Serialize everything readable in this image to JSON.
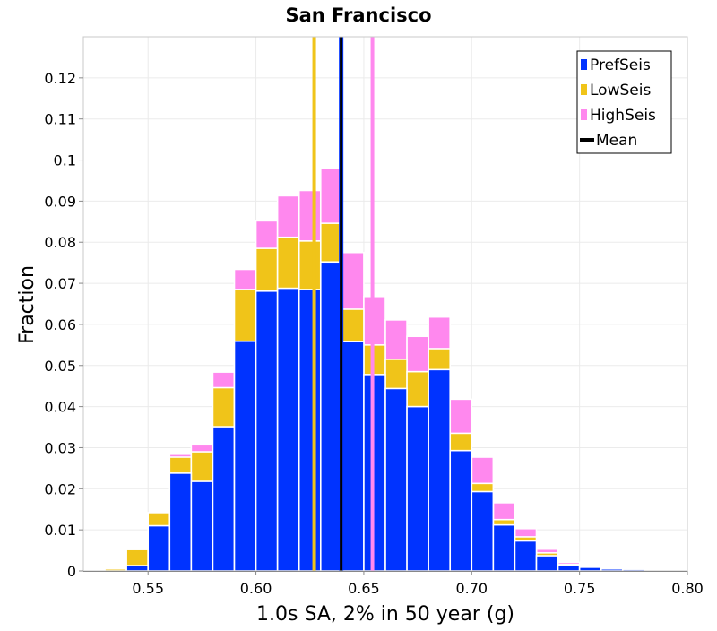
{
  "chart_data": {
    "type": "bar",
    "title": "San Francisco",
    "xlabel": "1.0s SA, 2% in 50 year (g)",
    "ylabel": "Fraction",
    "xlim": [
      0.52,
      0.8
    ],
    "ylim": [
      0,
      0.13
    ],
    "grid": true,
    "bin_width": 0.01,
    "bin_centers": [
      0.525,
      0.535,
      0.545,
      0.555,
      0.565,
      0.575,
      0.585,
      0.595,
      0.605,
      0.615,
      0.625,
      0.635,
      0.645,
      0.655,
      0.665,
      0.675,
      0.685,
      0.695,
      0.705,
      0.715,
      0.725,
      0.735,
      0.745,
      0.755,
      0.765,
      0.775,
      0.785,
      0.795
    ],
    "x_ticks": [
      "0.55",
      "0.60",
      "0.65",
      "0.70",
      "0.75",
      "0.80"
    ],
    "x_tick_values": [
      0.55,
      0.6,
      0.65,
      0.7,
      0.75,
      0.8
    ],
    "y_ticks": [
      "0",
      "0.01",
      "0.02",
      "0.03",
      "0.04",
      "0.05",
      "0.06",
      "0.07",
      "0.08",
      "0.09",
      "0.1",
      "0.11",
      "0.12"
    ],
    "y_tick_values": [
      0,
      0.01,
      0.02,
      0.03,
      0.04,
      0.05,
      0.06,
      0.07,
      0.08,
      0.09,
      0.1,
      0.11,
      0.12
    ],
    "series": [
      {
        "name": "PrefSeis",
        "color": "#0033ff",
        "values": [
          0.0,
          0.0,
          0.0013,
          0.011,
          0.0238,
          0.0218,
          0.0351,
          0.0559,
          0.0681,
          0.0688,
          0.0685,
          0.0752,
          0.0558,
          0.0478,
          0.0444,
          0.04,
          0.049,
          0.0293,
          0.0193,
          0.0112,
          0.0073,
          0.0037,
          0.0013,
          0.0009,
          0.0005,
          0.0004,
          0.0001,
          0.0
        ]
      },
      {
        "name": "LowSeis",
        "color": "#f0c419",
        "values": [
          0.0,
          0.0005,
          0.0052,
          0.0142,
          0.0277,
          0.029,
          0.0446,
          0.0685,
          0.0785,
          0.0812,
          0.0803,
          0.0846,
          0.0637,
          0.055,
          0.0515,
          0.0485,
          0.0541,
          0.0335,
          0.0213,
          0.0125,
          0.0083,
          0.0044,
          0.0016,
          0.001,
          0.0005,
          0.0004,
          0.0001,
          0.0
        ]
      },
      {
        "name": "HighSeis",
        "color": "#ff88ee",
        "values": [
          0.0,
          0.0002,
          0.0,
          0.0,
          0.0284,
          0.0307,
          0.0484,
          0.0734,
          0.0852,
          0.0913,
          0.0926,
          0.098,
          0.0775,
          0.0668,
          0.0611,
          0.0571,
          0.0618,
          0.0418,
          0.0277,
          0.0166,
          0.0103,
          0.0053,
          0.0021,
          0.0013,
          0.0005,
          0.0004,
          0.0002,
          0.0001
        ]
      }
    ],
    "vertical_lines": [
      {
        "name": "LowSeis",
        "x": 0.627,
        "color": "#f0c419"
      },
      {
        "name": "HighSeis",
        "x": 0.654,
        "color": "#ff88ee"
      },
      {
        "name": "PrefSeis",
        "x": 0.6395,
        "color": "#0033ff"
      },
      {
        "name": "Mean",
        "x": 0.6395,
        "color": "#000000"
      }
    ],
    "legend": {
      "position": "top-right",
      "entries": [
        {
          "label": "PrefSeis",
          "color": "#0033ff",
          "kind": "box"
        },
        {
          "label": "LowSeis",
          "color": "#f0c419",
          "kind": "box"
        },
        {
          "label": "HighSeis",
          "color": "#ff88ee",
          "kind": "box"
        },
        {
          "label": "Mean",
          "color": "#000000",
          "kind": "line"
        }
      ]
    }
  }
}
